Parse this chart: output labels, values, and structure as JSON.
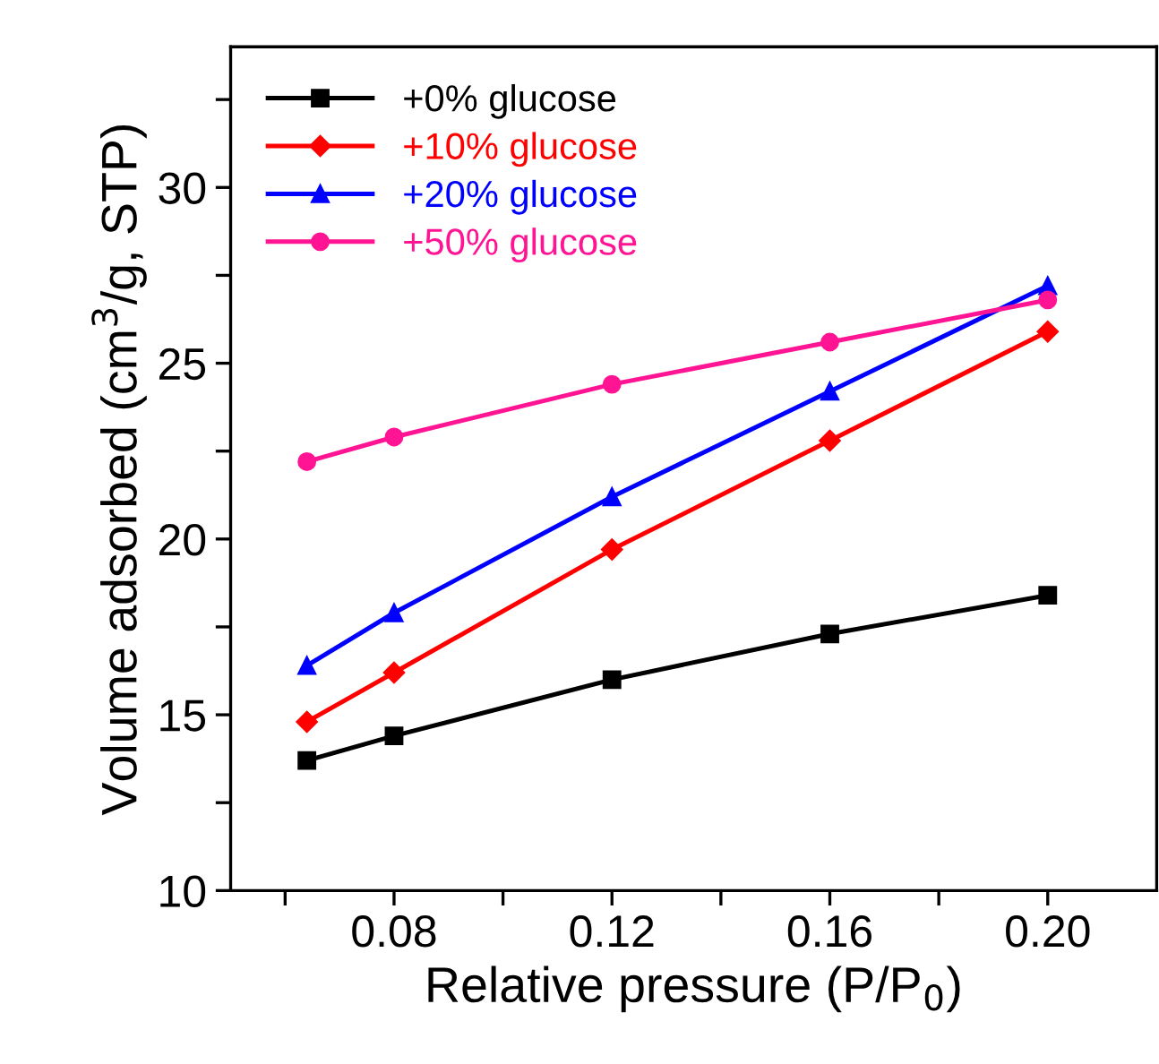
{
  "chart_data": {
    "type": "line",
    "xlabel": "Relative pressure (P/P$_{0}$)",
    "ylabel": "Volume adsorbed (cm$^{3}$/g, STP)",
    "x": [
      0.064,
      0.08,
      0.12,
      0.16,
      0.2
    ],
    "series": [
      {
        "name": "+0% glucose",
        "color": "#000000",
        "marker": "square",
        "values": [
          13.7,
          14.4,
          16.0,
          17.3,
          18.4
        ]
      },
      {
        "name": "+10% glucose",
        "color": "#ff0000",
        "marker": "diamond",
        "values": [
          14.8,
          16.2,
          19.7,
          22.8,
          25.9
        ]
      },
      {
        "name": "+20% glucose",
        "color": "#0000ff",
        "marker": "triangle",
        "values": [
          16.4,
          17.9,
          21.2,
          24.2,
          27.2
        ]
      },
      {
        "name": "+50% glucose",
        "color": "#ff1493",
        "marker": "circle",
        "values": [
          22.2,
          22.9,
          24.4,
          25.6,
          26.8
        ]
      }
    ],
    "xlim": [
      0.05,
      0.22
    ],
    "ylim": [
      10,
      34
    ],
    "xticks": [
      {
        "value": 0.06,
        "label": null
      },
      0.08,
      {
        "value": 0.1,
        "label": null
      },
      0.12,
      {
        "value": 0.14,
        "label": null
      },
      0.16,
      {
        "value": 0.18,
        "label": null
      },
      {
        "value": 0.2,
        "label": "0.20"
      }
    ],
    "yticks": [
      10,
      {
        "value": 12.5,
        "label": null
      },
      15,
      {
        "value": 17.5,
        "label": null
      },
      20,
      {
        "value": 22.5,
        "label": null
      },
      25,
      {
        "value": 27.5,
        "label": null
      },
      30,
      {
        "value": 32.5,
        "label": null
      }
    ],
    "grid": false,
    "legend": "top left",
    "line_style": "solid"
  }
}
